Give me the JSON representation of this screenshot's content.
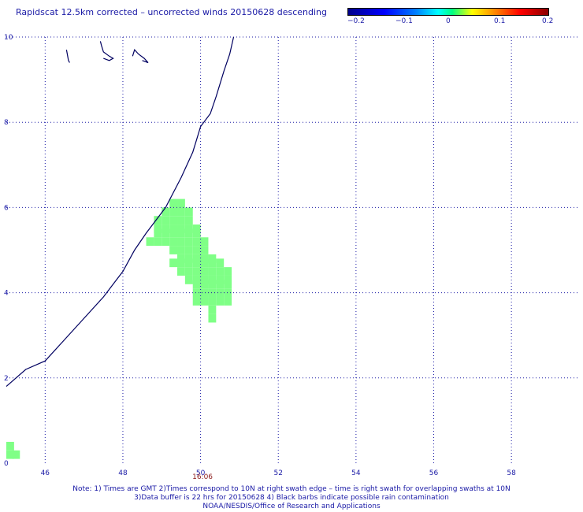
{
  "title": "Rapidscat 12.5km corrected – uncorrected winds 20150628 descending",
  "colorbar": {
    "ticks": [
      "−0.2",
      "−0.1",
      "0",
      "0.1",
      "0.2"
    ],
    "values": [
      -0.2,
      -0.1,
      0,
      0.1,
      0.2
    ]
  },
  "axes": {
    "x_ticks": [
      "46",
      "48",
      "50",
      "52",
      "54",
      "56",
      "58"
    ],
    "x_values": [
      46,
      48,
      50,
      52,
      54,
      56,
      58
    ],
    "y_ticks": [
      "0",
      "2",
      "4",
      "6",
      "8",
      "10"
    ],
    "y_values": [
      0,
      2,
      4,
      6,
      8,
      10
    ],
    "xlim": [
      45,
      59.7
    ],
    "ylim": [
      0,
      10
    ],
    "grid": true
  },
  "swath_time": "16:06",
  "swath_time_lon": 50.05,
  "notes": [
    "Note: 1) Times are GMT 2)Times correspond to 10N at right swath edge – time is right swath for overlapping swaths at 10N",
    "3)Data buffer is 22 hrs for 20150628 4) Black barbs indicate possible rain contamination",
    "NOAA/NESDIS/Office of Research and Applications"
  ],
  "colors": {
    "grid": "#1a1aa6",
    "coast": "#000060",
    "wind_difference": "#7fff86",
    "swath_time": "#8b1a1a"
  },
  "map_data": {
    "coastline": [
      [
        45.0,
        1.8
      ],
      [
        45.5,
        2.2
      ],
      [
        46.0,
        2.4
      ],
      [
        46.5,
        2.9
      ],
      [
        47.0,
        3.4
      ],
      [
        47.5,
        3.9
      ],
      [
        48.0,
        4.5
      ],
      [
        48.3,
        5.0
      ],
      [
        48.6,
        5.4
      ],
      [
        49.1,
        6.0
      ],
      [
        49.5,
        6.7
      ],
      [
        49.8,
        7.3
      ],
      [
        49.9,
        7.6
      ],
      [
        50.0,
        7.9
      ],
      [
        50.25,
        8.2
      ],
      [
        50.4,
        8.6
      ],
      [
        50.6,
        9.2
      ],
      [
        50.75,
        9.6
      ],
      [
        50.85,
        10.0
      ]
    ],
    "island_fragments": [
      [
        [
          46.55,
          9.7
        ],
        [
          46.57,
          9.6
        ],
        [
          46.6,
          9.45
        ],
        [
          46.63,
          9.4
        ]
      ],
      [
        [
          47.42,
          9.9
        ],
        [
          47.45,
          9.8
        ],
        [
          47.5,
          9.65
        ],
        [
          47.65,
          9.55
        ],
        [
          47.75,
          9.5
        ],
        [
          47.65,
          9.45
        ],
        [
          47.5,
          9.5
        ]
      ],
      [
        [
          48.25,
          9.55
        ],
        [
          48.3,
          9.7
        ],
        [
          48.4,
          9.6
        ],
        [
          48.55,
          9.5
        ],
        [
          48.65,
          9.4
        ],
        [
          48.5,
          9.45
        ]
      ]
    ],
    "wind_difference_cells": [
      [
        49.2,
        6.1
      ],
      [
        49.4,
        6.1
      ],
      [
        49.0,
        5.9
      ],
      [
        49.2,
        5.9
      ],
      [
        49.4,
        5.9
      ],
      [
        49.6,
        5.9
      ],
      [
        48.8,
        5.7
      ],
      [
        49.0,
        5.7
      ],
      [
        49.2,
        5.7
      ],
      [
        49.4,
        5.7
      ],
      [
        49.6,
        5.7
      ],
      [
        48.8,
        5.5
      ],
      [
        49.0,
        5.5
      ],
      [
        49.2,
        5.5
      ],
      [
        49.4,
        5.5
      ],
      [
        49.6,
        5.5
      ],
      [
        49.8,
        5.5
      ],
      [
        48.8,
        5.4
      ],
      [
        49.0,
        5.4
      ],
      [
        49.2,
        5.4
      ],
      [
        49.4,
        5.4
      ],
      [
        49.6,
        5.4
      ],
      [
        49.8,
        5.4
      ],
      [
        48.6,
        5.2
      ],
      [
        48.8,
        5.2
      ],
      [
        49.0,
        5.2
      ],
      [
        49.2,
        5.2
      ],
      [
        49.4,
        5.2
      ],
      [
        49.6,
        5.2
      ],
      [
        49.8,
        5.2
      ],
      [
        50.0,
        5.2
      ],
      [
        49.2,
        5.0
      ],
      [
        49.4,
        5.0
      ],
      [
        49.6,
        5.0
      ],
      [
        49.8,
        5.0
      ],
      [
        50.0,
        5.0
      ],
      [
        49.4,
        4.8
      ],
      [
        49.6,
        4.8
      ],
      [
        49.8,
        4.8
      ],
      [
        50.0,
        4.8
      ],
      [
        50.2,
        4.8
      ],
      [
        49.2,
        4.7
      ],
      [
        49.4,
        4.7
      ],
      [
        49.6,
        4.7
      ],
      [
        49.8,
        4.7
      ],
      [
        50.0,
        4.7
      ],
      [
        50.2,
        4.7
      ],
      [
        50.4,
        4.7
      ],
      [
        49.4,
        4.5
      ],
      [
        49.6,
        4.5
      ],
      [
        49.8,
        4.5
      ],
      [
        50.0,
        4.5
      ],
      [
        50.2,
        4.5
      ],
      [
        50.4,
        4.5
      ],
      [
        50.6,
        4.5
      ],
      [
        49.6,
        4.3
      ],
      [
        49.8,
        4.3
      ],
      [
        50.0,
        4.3
      ],
      [
        50.2,
        4.3
      ],
      [
        50.4,
        4.3
      ],
      [
        50.6,
        4.3
      ],
      [
        49.8,
        4.2
      ],
      [
        50.0,
        4.2
      ],
      [
        50.2,
        4.2
      ],
      [
        50.4,
        4.2
      ],
      [
        50.6,
        4.2
      ],
      [
        49.8,
        4.0
      ],
      [
        50.0,
        4.0
      ],
      [
        50.2,
        4.0
      ],
      [
        50.4,
        4.0
      ],
      [
        50.6,
        4.0
      ],
      [
        49.8,
        3.8
      ],
      [
        50.0,
        3.8
      ],
      [
        50.2,
        3.8
      ],
      [
        50.4,
        3.8
      ],
      [
        50.6,
        3.8
      ],
      [
        50.2,
        3.6
      ],
      [
        50.2,
        3.4
      ],
      [
        45.0,
        0.2
      ],
      [
        45.0,
        0.4
      ],
      [
        45.15,
        0.2
      ]
    ]
  }
}
